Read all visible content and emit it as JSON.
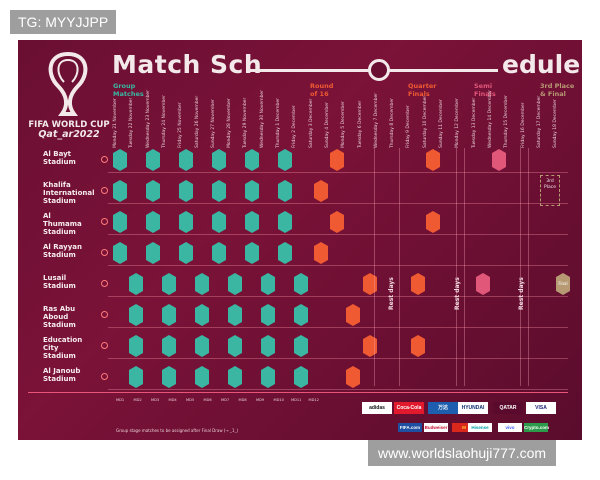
{
  "watermark_top": "TG: MYYJJPP",
  "watermark_bottom": "www.worldslaohuji777.com",
  "poster": {
    "title_left": "Match Sch",
    "title_right": "edule",
    "logo_line1": "FIFA WORLD CUP",
    "logo_line2": "Qat_ar2022",
    "sections": [
      {
        "label": "Group\nMatches",
        "color": "#3ab6a3"
      },
      {
        "label": "Round\nof 16",
        "color": "#ef5a32"
      },
      {
        "label": "Quarter\nFinals",
        "color": "#ef5a32"
      },
      {
        "label": "Semi\nFinals",
        "color": "#e0577a"
      },
      {
        "label": "3rd Place\n& Final",
        "color": "#b79a74"
      }
    ],
    "day_headers": [
      "Monday 21 November",
      "Tuesday 22 November",
      "Wednesday 23 November",
      "Thursday 24 November",
      "Friday 25 November",
      "Saturday 26 November",
      "Sunday 27 November",
      "Monday 28 November",
      "Tuesday 29 November",
      "Wednesday 30 November",
      "Thursday 1 December",
      "Friday 2 December",
      "Saturday 3 December",
      "Sunday 4 December",
      "Monday 5 December",
      "Tuesday 6 December",
      "Wednesday 7 December",
      "Thursday 8 December",
      "Friday 9 December",
      "Saturday 10 December",
      "Sunday 11 December",
      "Monday 12 December",
      "Tuesday 13 December",
      "Wednesday 14 December",
      "Thursday 15 December",
      "Friday 16 December",
      "Saturday 17 December",
      "Sunday 18 December"
    ],
    "stadiums": [
      "Al Bayt\nStadium",
      "Khalifa\nInternational\nStadium",
      "Al\nThumama\nStadium",
      "Al Rayyan\nStadium",
      "Lusail\nStadium",
      "Ras Abu\nAboud\nStadium",
      "Education\nCity\nStadium",
      "Al Janoub\nStadium"
    ],
    "rest_days": "Rest days",
    "third_place_label": "3rd\nPlace",
    "final_label": "Final",
    "footnote": "Group stage matches to be assigned after Final Draw (→ _1_)",
    "sponsors_row1": [
      {
        "name": "adidas",
        "bg": "#ffffff",
        "fg": "#111111"
      },
      {
        "name": "Coca-Cola",
        "bg": "#e0192d",
        "fg": "#ffffff"
      },
      {
        "name": "万达",
        "bg": "#1d5fae",
        "fg": "#ffffff"
      },
      {
        "name": "HYUNDAI",
        "bg": "#ffffff",
        "fg": "#0b2f6b"
      },
      {
        "name": "QATAR",
        "bg": "#5a0a2c",
        "fg": "#ffffff"
      },
      {
        "name": "VISA",
        "bg": "#ffffff",
        "fg": "#1a1f71"
      }
    ],
    "sponsors_row2": [
      {
        "name": "FIFA.com",
        "bg": "#1e4fa0",
        "fg": "#ffffff"
      },
      {
        "name": "Budweiser",
        "bg": "#ffffff",
        "fg": "#c8102e"
      },
      {
        "name": "M",
        "bg": "#da291c",
        "fg": "#ffc72c"
      },
      {
        "name": "Hisense",
        "bg": "#ffffff",
        "fg": "#00a0a0"
      },
      {
        "name": "vivo",
        "bg": "#ffffff",
        "fg": "#415fff"
      },
      {
        "name": "Crypto.com",
        "bg": "#2b9a4a",
        "fg": "#ffffff"
      }
    ]
  }
}
